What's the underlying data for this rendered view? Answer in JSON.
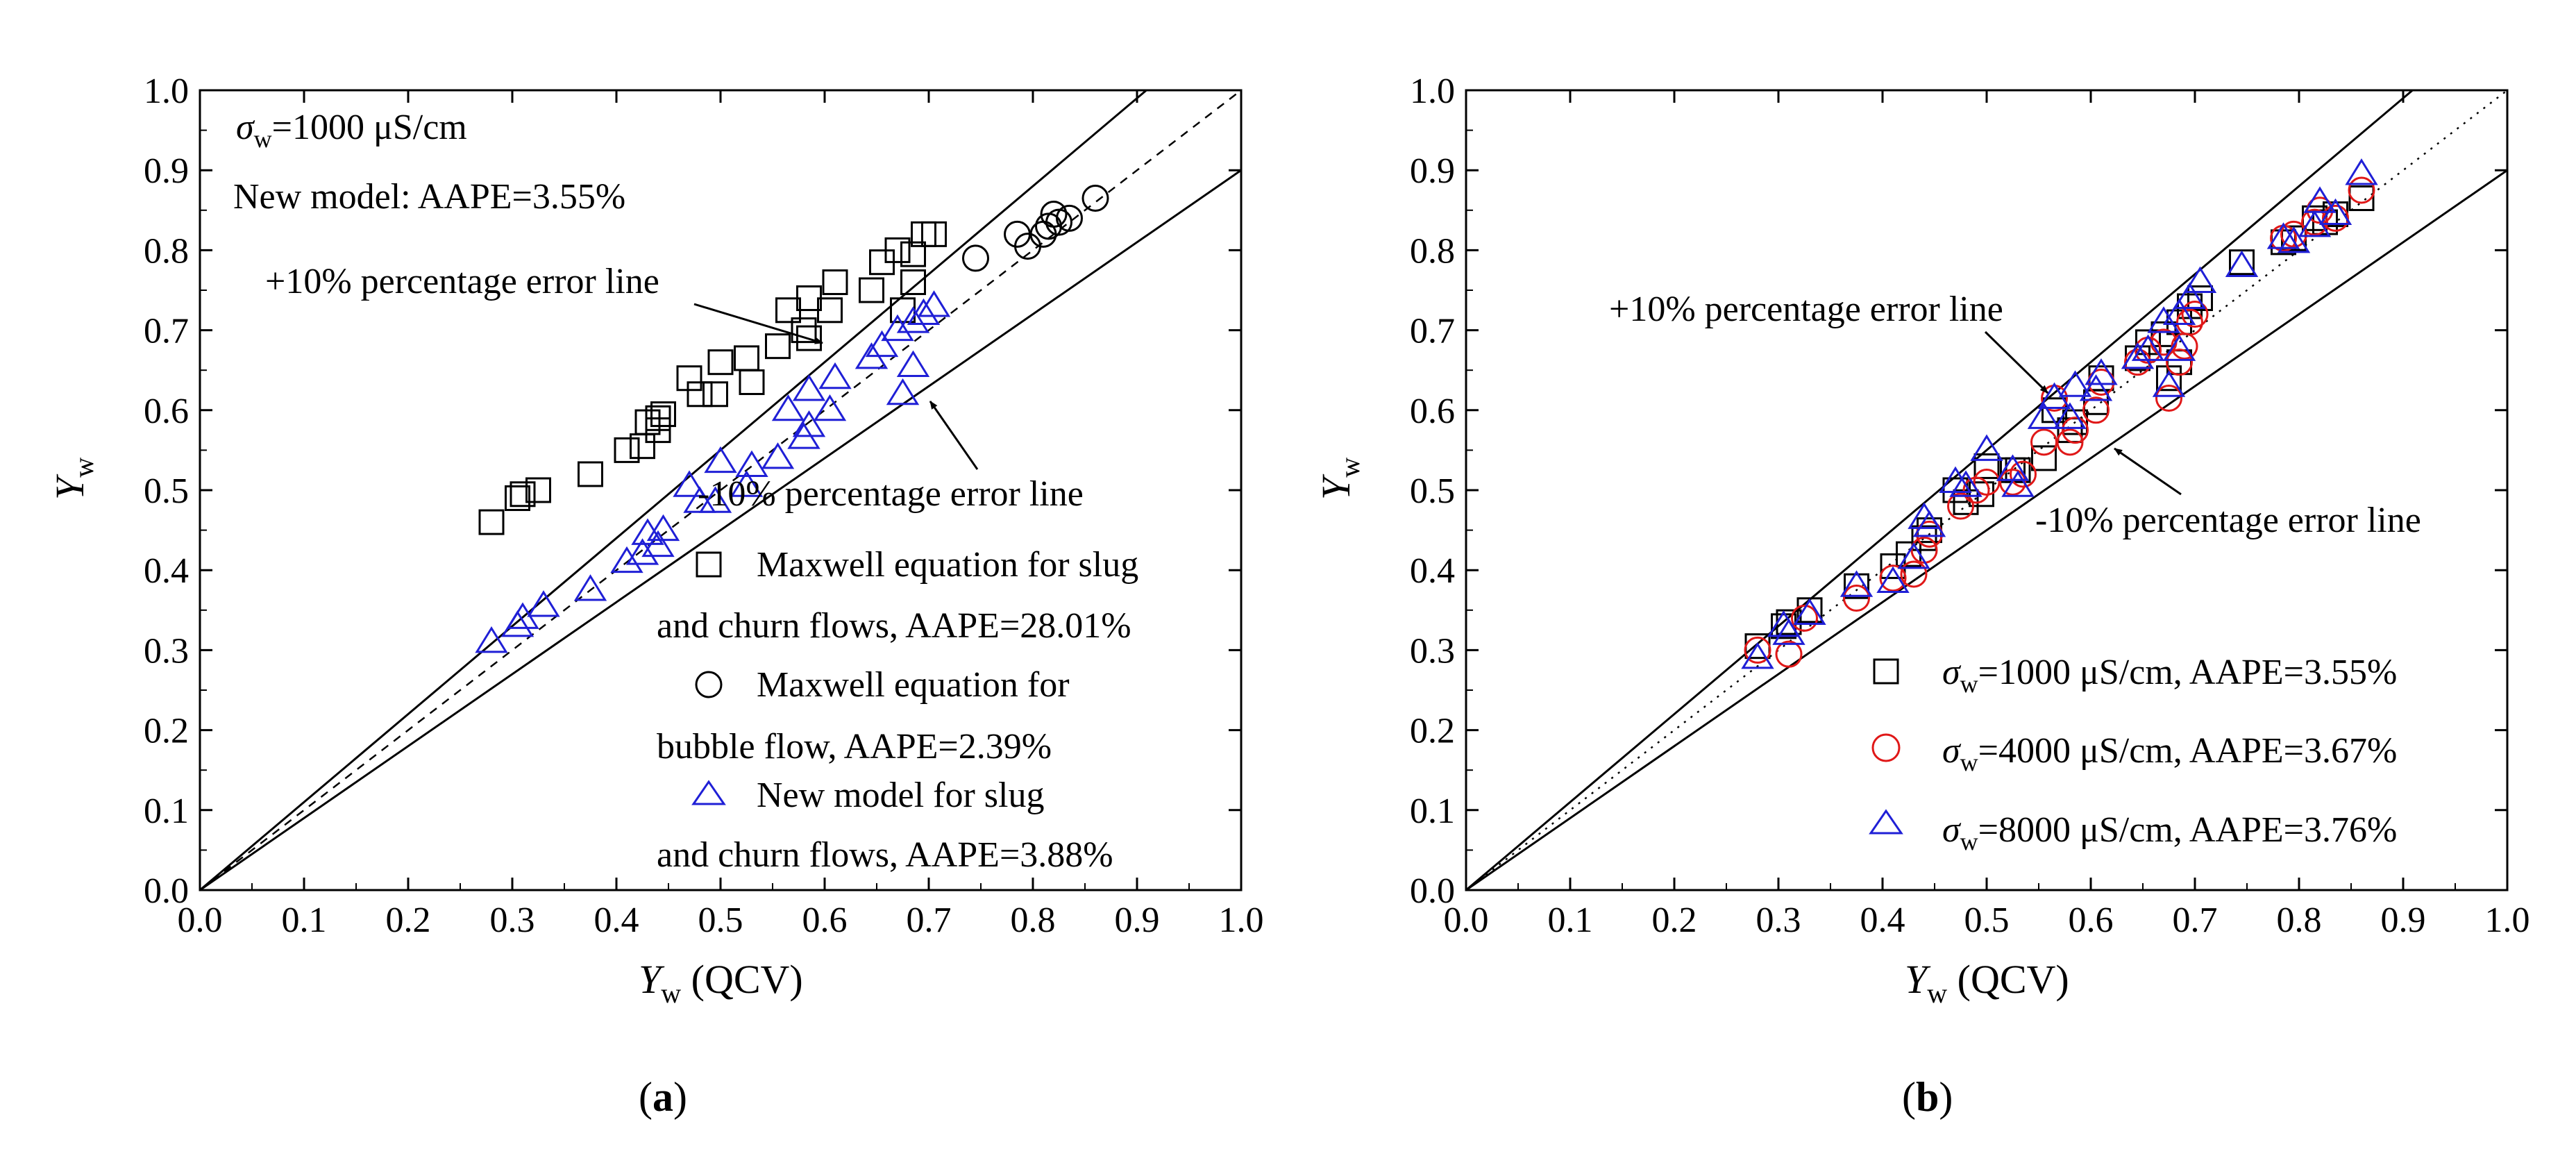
{
  "chart_data": [
    {
      "type": "scatter",
      "panel_label": "a",
      "xlabel_main": "Y",
      "xlabel_sub": "w",
      "xlabel_suffix": " (QCV)",
      "ylabel_main": "Y",
      "ylabel_sub": "w",
      "xlim": [
        0.0,
        1.0
      ],
      "ylim": [
        0.0,
        1.0
      ],
      "ticks": [
        "0.0",
        "0.1",
        "0.2",
        "0.3",
        "0.4",
        "0.5",
        "0.6",
        "0.7",
        "0.8",
        "0.9",
        "1.0"
      ],
      "header": {
        "sigma_symbol": "σ",
        "sigma_sub": "w",
        "sigma_text": "=1000 μS/cm",
        "model_text": "New model: AAPE=3.55%"
      },
      "annotations": {
        "plus10": "+10% percentage error line",
        "minus10": "-10% percentage error line"
      },
      "legend": [
        {
          "line1": "Maxwell equation for slug",
          "line2": "and churn flows, AAPE=28.01%",
          "marker": "square"
        },
        {
          "line1": "Maxwell equation for",
          "line2": "bubble flow, AAPE=2.39%",
          "marker": "circle"
        },
        {
          "line1": "New model for slug",
          "line2": "and churn flows, AAPE=3.88%",
          "marker": "triangle"
        }
      ],
      "reference_lines": {
        "identity": [
          1.0,
          1.0
        ],
        "plus10": [
          0.909,
          1.0
        ],
        "minus10": [
          1.0,
          0.9
        ]
      },
      "series": [
        {
          "marker": "square",
          "color": "#000000",
          "points": [
            [
              0.28,
              0.46
            ],
            [
              0.305,
              0.49
            ],
            [
              0.31,
              0.495
            ],
            [
              0.325,
              0.5
            ],
            [
              0.375,
              0.52
            ],
            [
              0.41,
              0.55
            ],
            [
              0.425,
              0.555
            ],
            [
              0.43,
              0.585
            ],
            [
              0.44,
              0.59
            ],
            [
              0.445,
              0.595
            ],
            [
              0.44,
              0.575
            ],
            [
              0.47,
              0.64
            ],
            [
              0.48,
              0.62
            ],
            [
              0.495,
              0.62
            ],
            [
              0.5,
              0.66
            ],
            [
              0.525,
              0.665
            ],
            [
              0.53,
              0.635
            ],
            [
              0.555,
              0.68
            ],
            [
              0.565,
              0.725
            ],
            [
              0.58,
              0.7
            ],
            [
              0.585,
              0.69
            ],
            [
              0.585,
              0.74
            ],
            [
              0.605,
              0.725
            ],
            [
              0.61,
              0.76
            ],
            [
              0.645,
              0.75
            ],
            [
              0.655,
              0.785
            ],
            [
              0.67,
              0.8
            ],
            [
              0.675,
              0.725
            ],
            [
              0.685,
              0.76
            ],
            [
              0.685,
              0.795
            ],
            [
              0.695,
              0.82
            ],
            [
              0.705,
              0.82
            ]
          ]
        },
        {
          "marker": "circle",
          "color": "#000000",
          "points": [
            [
              0.745,
              0.79
            ],
            [
              0.785,
              0.82
            ],
            [
              0.795,
              0.805
            ],
            [
              0.81,
              0.82
            ],
            [
              0.815,
              0.83
            ],
            [
              0.82,
              0.845
            ],
            [
              0.825,
              0.835
            ],
            [
              0.835,
              0.84
            ],
            [
              0.86,
              0.865
            ]
          ]
        },
        {
          "marker": "triangle",
          "color": "#1f1fd6",
          "points": [
            [
              0.28,
              0.31
            ],
            [
              0.305,
              0.33
            ],
            [
              0.31,
              0.34
            ],
            [
              0.33,
              0.355
            ],
            [
              0.375,
              0.375
            ],
            [
              0.41,
              0.41
            ],
            [
              0.425,
              0.42
            ],
            [
              0.43,
              0.445
            ],
            [
              0.44,
              0.43
            ],
            [
              0.445,
              0.45
            ],
            [
              0.47,
              0.505
            ],
            [
              0.48,
              0.485
            ],
            [
              0.495,
              0.485
            ],
            [
              0.5,
              0.535
            ],
            [
              0.525,
              0.505
            ],
            [
              0.53,
              0.53
            ],
            [
              0.555,
              0.54
            ],
            [
              0.565,
              0.6
            ],
            [
              0.58,
              0.565
            ],
            [
              0.585,
              0.58
            ],
            [
              0.585,
              0.625
            ],
            [
              0.605,
              0.6
            ],
            [
              0.61,
              0.64
            ],
            [
              0.645,
              0.665
            ],
            [
              0.655,
              0.68
            ],
            [
              0.67,
              0.7
            ],
            [
              0.675,
              0.62
            ],
            [
              0.685,
              0.655
            ],
            [
              0.685,
              0.71
            ],
            [
              0.695,
              0.72
            ],
            [
              0.705,
              0.73
            ]
          ]
        }
      ]
    },
    {
      "type": "scatter",
      "panel_label": "b",
      "xlabel_main": "Y",
      "xlabel_sub": "w",
      "xlabel_suffix": " (QCV)",
      "ylabel_main": "Y",
      "ylabel_sub": "w",
      "xlim": [
        0.0,
        1.0
      ],
      "ylim": [
        0.0,
        1.0
      ],
      "ticks": [
        "0.0",
        "0.1",
        "0.2",
        "0.3",
        "0.4",
        "0.5",
        "0.6",
        "0.7",
        "0.8",
        "0.9",
        "1.0"
      ],
      "annotations": {
        "plus10": "+10% percentage error line",
        "minus10": "-10% percentage error line"
      },
      "legend": [
        {
          "sigma_symbol": "σ",
          "sigma_sub": "w",
          "text": "=1000 μS/cm, AAPE=3.55%",
          "marker": "square",
          "color": "#000000"
        },
        {
          "sigma_symbol": "σ",
          "sigma_sub": "w",
          "text": "=4000 μS/cm, AAPE=3.67%",
          "marker": "circle",
          "color": "#e01818"
        },
        {
          "sigma_symbol": "σ",
          "sigma_sub": "w",
          "text": "=8000 μS/cm, AAPE=3.76%",
          "marker": "triangle",
          "color": "#1f1fd6"
        }
      ],
      "reference_lines": {
        "identity_dotted": [
          1.0,
          1.0
        ],
        "plus10": [
          0.909,
          1.0
        ],
        "minus10": [
          1.0,
          0.9
        ]
      },
      "series": [
        {
          "marker": "square",
          "color": "#000000",
          "points": [
            [
              0.28,
              0.305
            ],
            [
              0.305,
              0.33
            ],
            [
              0.31,
              0.335
            ],
            [
              0.33,
              0.35
            ],
            [
              0.375,
              0.38
            ],
            [
              0.41,
              0.405
            ],
            [
              0.425,
              0.42
            ],
            [
              0.44,
              0.44
            ],
            [
              0.445,
              0.45
            ],
            [
              0.47,
              0.5
            ],
            [
              0.48,
              0.485
            ],
            [
              0.495,
              0.495
            ],
            [
              0.5,
              0.53
            ],
            [
              0.525,
              0.525
            ],
            [
              0.53,
              0.525
            ],
            [
              0.555,
              0.54
            ],
            [
              0.565,
              0.6
            ],
            [
              0.58,
              0.575
            ],
            [
              0.585,
              0.585
            ],
            [
              0.605,
              0.61
            ],
            [
              0.61,
              0.64
            ],
            [
              0.645,
              0.665
            ],
            [
              0.655,
              0.685
            ],
            [
              0.67,
              0.695
            ],
            [
              0.675,
              0.64
            ],
            [
              0.685,
              0.66
            ],
            [
              0.685,
              0.71
            ],
            [
              0.695,
              0.73
            ],
            [
              0.705,
              0.74
            ],
            [
              0.745,
              0.785
            ],
            [
              0.785,
              0.81
            ],
            [
              0.795,
              0.815
            ],
            [
              0.815,
              0.84
            ],
            [
              0.825,
              0.835
            ],
            [
              0.835,
              0.845
            ],
            [
              0.86,
              0.865
            ]
          ]
        },
        {
          "marker": "circle",
          "color": "#e01818",
          "points": [
            [
              0.28,
              0.3
            ],
            [
              0.31,
              0.295
            ],
            [
              0.325,
              0.34
            ],
            [
              0.375,
              0.365
            ],
            [
              0.41,
              0.39
            ],
            [
              0.43,
              0.395
            ],
            [
              0.44,
              0.425
            ],
            [
              0.445,
              0.445
            ],
            [
              0.475,
              0.48
            ],
            [
              0.49,
              0.5
            ],
            [
              0.5,
              0.51
            ],
            [
              0.525,
              0.51
            ],
            [
              0.535,
              0.52
            ],
            [
              0.555,
              0.56
            ],
            [
              0.565,
              0.615
            ],
            [
              0.58,
              0.56
            ],
            [
              0.585,
              0.575
            ],
            [
              0.605,
              0.6
            ],
            [
              0.61,
              0.635
            ],
            [
              0.645,
              0.66
            ],
            [
              0.655,
              0.675
            ],
            [
              0.67,
              0.685
            ],
            [
              0.675,
              0.615
            ],
            [
              0.685,
              0.66
            ],
            [
              0.69,
              0.68
            ],
            [
              0.695,
              0.71
            ],
            [
              0.7,
              0.72
            ],
            [
              0.785,
              0.815
            ],
            [
              0.795,
              0.82
            ],
            [
              0.815,
              0.835
            ],
            [
              0.82,
              0.85
            ],
            [
              0.835,
              0.84
            ],
            [
              0.86,
              0.875
            ]
          ]
        },
        {
          "marker": "triangle",
          "color": "#1f1fd6",
          "points": [
            [
              0.28,
              0.29
            ],
            [
              0.305,
              0.33
            ],
            [
              0.31,
              0.32
            ],
            [
              0.33,
              0.345
            ],
            [
              0.375,
              0.38
            ],
            [
              0.41,
              0.385
            ],
            [
              0.43,
              0.415
            ],
            [
              0.44,
              0.465
            ],
            [
              0.445,
              0.455
            ],
            [
              0.47,
              0.51
            ],
            [
              0.48,
              0.505
            ],
            [
              0.5,
              0.55
            ],
            [
              0.525,
              0.525
            ],
            [
              0.53,
              0.505
            ],
            [
              0.555,
              0.59
            ],
            [
              0.565,
              0.615
            ],
            [
              0.58,
              0.59
            ],
            [
              0.585,
              0.63
            ],
            [
              0.605,
              0.625
            ],
            [
              0.61,
              0.645
            ],
            [
              0.645,
              0.665
            ],
            [
              0.655,
              0.675
            ],
            [
              0.67,
              0.71
            ],
            [
              0.675,
              0.63
            ],
            [
              0.685,
              0.675
            ],
            [
              0.685,
              0.72
            ],
            [
              0.695,
              0.74
            ],
            [
              0.705,
              0.76
            ],
            [
              0.745,
              0.78
            ],
            [
              0.785,
              0.815
            ],
            [
              0.795,
              0.81
            ],
            [
              0.815,
              0.83
            ],
            [
              0.82,
              0.86
            ],
            [
              0.835,
              0.845
            ],
            [
              0.86,
              0.895
            ]
          ]
        }
      ]
    }
  ]
}
